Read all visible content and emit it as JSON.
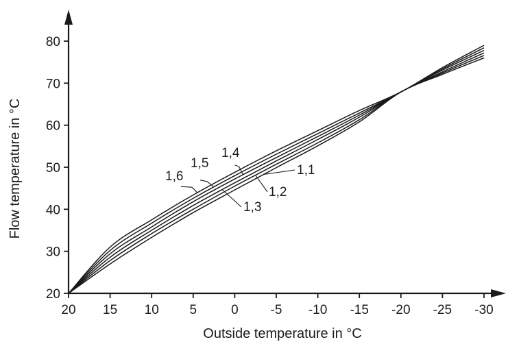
{
  "chart_data": {
    "type": "line",
    "title": "",
    "xlabel": "Outside temperature in °C",
    "ylabel": "Flow temperature in °C",
    "xlim": [
      20,
      -30
    ],
    "ylim": [
      20,
      80
    ],
    "x_ticks": [
      20,
      15,
      10,
      5,
      0,
      -5,
      -10,
      -15,
      -20,
      -25,
      -30
    ],
    "x_tick_labels": [
      "20",
      "15",
      "10",
      "5",
      "0",
      "-5",
      "-10",
      "-15",
      "-20",
      "-25",
      "-30"
    ],
    "y_ticks": [
      20,
      30,
      40,
      50,
      60,
      70,
      80
    ],
    "y_tick_labels": [
      "20",
      "30",
      "40",
      "50",
      "60",
      "70",
      "80"
    ],
    "x": [
      20,
      15,
      10,
      5,
      0,
      -5,
      -10,
      -15,
      -20,
      -25,
      -30
    ],
    "grid": false,
    "legend": "none",
    "series": [
      {
        "name": "1,1",
        "values": [
          20,
          27.0,
          33.3,
          39.2,
          44.6,
          49.9,
          55.1,
          60.8,
          67.9,
          72.1,
          76.0
        ]
      },
      {
        "name": "1,2",
        "values": [
          20,
          27.8,
          34.2,
          40.0,
          45.5,
          50.7,
          55.8,
          61.3,
          67.9,
          72.4,
          76.6
        ]
      },
      {
        "name": "1,3",
        "values": [
          20,
          28.6,
          35.0,
          40.9,
          46.3,
          51.5,
          56.6,
          61.9,
          67.9,
          72.7,
          77.2
        ]
      },
      {
        "name": "1,4",
        "values": [
          20,
          29.4,
          35.8,
          41.8,
          47.2,
          52.3,
          57.3,
          62.4,
          67.9,
          73.1,
          77.8
        ]
      },
      {
        "name": "1,5",
        "values": [
          20,
          30.2,
          36.7,
          42.6,
          48.0,
          53.1,
          58.0,
          62.9,
          67.9,
          73.4,
          78.4
        ]
      },
      {
        "name": "1,6",
        "values": [
          20,
          31.0,
          37.5,
          43.4,
          48.8,
          53.9,
          58.7,
          63.5,
          67.9,
          73.7,
          79.0
        ]
      }
    ],
    "annotations": [
      {
        "text": "1,1",
        "series": "1,1",
        "x": -3.5
      },
      {
        "text": "1,2",
        "series": "1,2",
        "x": -2.5
      },
      {
        "text": "1,3",
        "series": "1,3",
        "x": 1.5
      },
      {
        "text": "1,4",
        "series": "1,4",
        "x": -1.0
      },
      {
        "text": "1,5",
        "series": "1,5",
        "x": 2.5
      },
      {
        "text": "1,6",
        "series": "1,6",
        "x": 4.5
      }
    ]
  }
}
